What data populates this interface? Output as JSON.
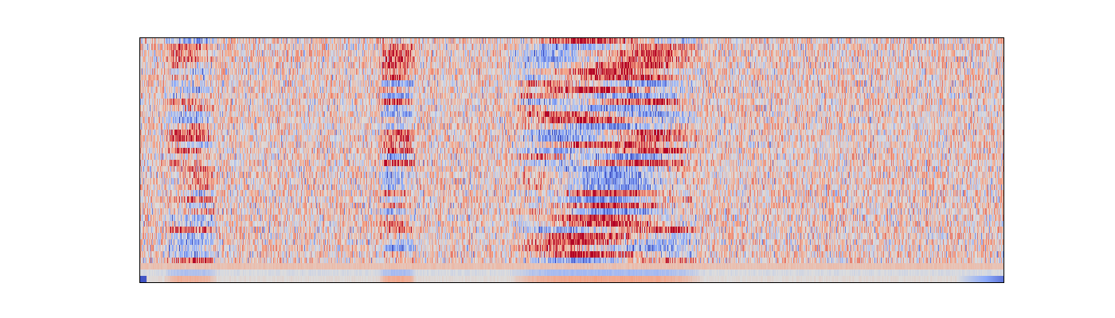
{
  "chart_data": {
    "type": "heatmap",
    "title": "",
    "xlabel": "",
    "ylabel": "",
    "colormap": "coolwarm",
    "axes_visible": false,
    "grid": false,
    "legend": "none",
    "colorbar": false,
    "n_frames": 1084,
    "n_bins": 40,
    "value_range": [
      -1,
      1
    ],
    "energy_segments": [
      {
        "start_frame": 30,
        "end_frame": 95,
        "strength": 0.8
      },
      {
        "start_frame": 300,
        "end_frame": 345,
        "strength": 0.9
      },
      {
        "start_frame": 465,
        "end_frame": 705,
        "strength": 1.0
      }
    ],
    "low_edge_dark_columns": {
      "left_frames": 8,
      "right_frames": 60
    }
  },
  "colors": {
    "frame": "#000000",
    "background": "#ffffff",
    "cold": "#3b4cc0",
    "neutral": "#dddddd",
    "hot": "#b40426"
  }
}
